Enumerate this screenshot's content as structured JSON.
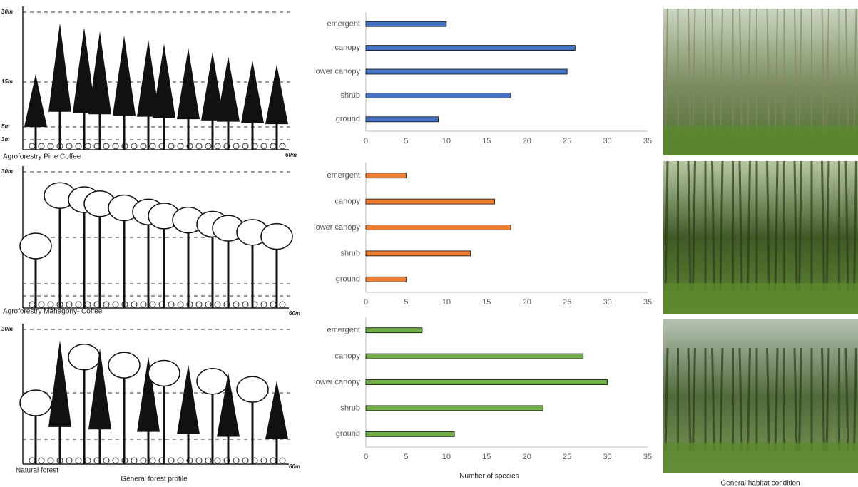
{
  "profiles": [
    {
      "caption": "Agroforestry Pine Coffee",
      "heights": [
        "30m",
        "15m",
        "5m",
        "3m"
      ],
      "length": "60m"
    },
    {
      "caption": "Agroforestry Mahagony- Coffee",
      "heights": [
        "30m"
      ],
      "length": "60m"
    },
    {
      "caption": "Natural forest",
      "heights": [
        "30m"
      ],
      "length": "60m"
    }
  ],
  "left_caption": "General forest profile",
  "right_caption": "General habitat condition",
  "x_axis_label": "Number of species",
  "chart_data": [
    {
      "type": "bar",
      "orientation": "horizontal",
      "categories": [
        "emergent",
        "canopy",
        "lower canopy",
        "shrub",
        "ground"
      ],
      "values": [
        10,
        26,
        25,
        18,
        9
      ],
      "color": "#4472c4",
      "xlim": [
        0,
        35
      ],
      "xticks": [
        0,
        5,
        10,
        15,
        20,
        25,
        30,
        35
      ]
    },
    {
      "type": "bar",
      "orientation": "horizontal",
      "categories": [
        "emergent",
        "canopy",
        "lower canopy",
        "shrub",
        "ground"
      ],
      "values": [
        5,
        16,
        18,
        13,
        5
      ],
      "color": "#ed7d31",
      "xlim": [
        0,
        35
      ],
      "xticks": [
        0,
        5,
        10,
        15,
        20,
        25,
        30,
        35
      ]
    },
    {
      "type": "bar",
      "orientation": "horizontal",
      "categories": [
        "emergent",
        "canopy",
        "lower canopy",
        "shrub",
        "ground"
      ],
      "values": [
        7,
        27,
        30,
        22,
        11
      ],
      "color": "#70ad47",
      "xlim": [
        0,
        35
      ],
      "xticks": [
        0,
        5,
        10,
        15,
        20,
        25,
        30,
        35
      ]
    }
  ]
}
